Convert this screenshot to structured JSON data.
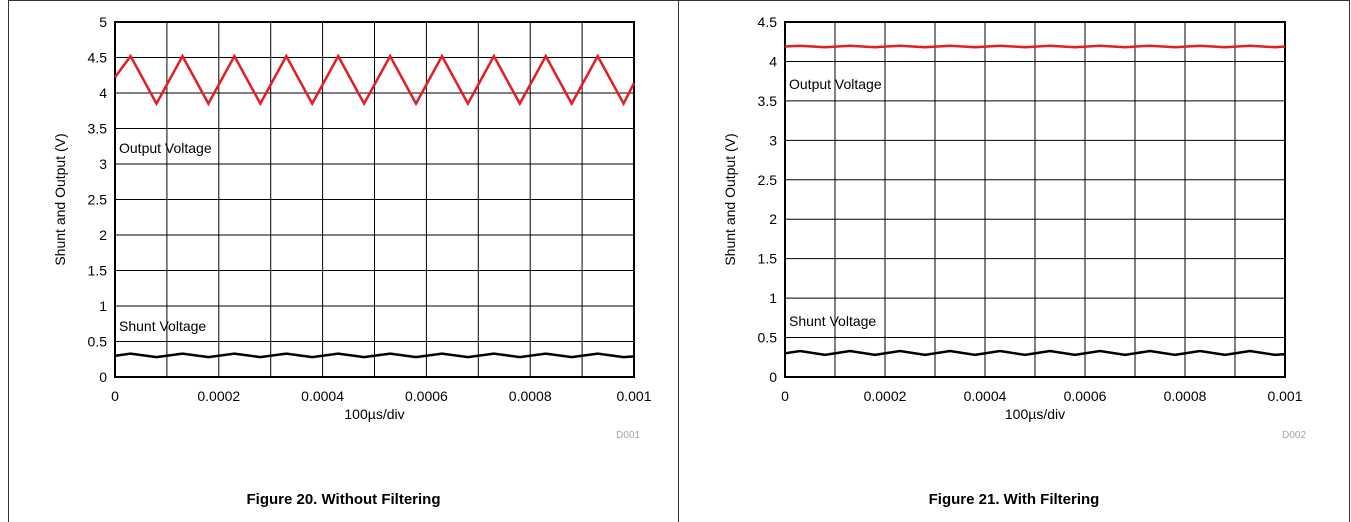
{
  "colors": {
    "output": "#e31e24",
    "shunt": "#000000",
    "grid": "#000000",
    "code": "#a6a6a6"
  },
  "figures": [
    {
      "caption": "Figure 20. Without Filtering",
      "code": "D001"
    },
    {
      "caption": "Figure 21. With Filtering",
      "code": "D002"
    }
  ],
  "chart_data": [
    {
      "type": "line",
      "title": "",
      "xlabel": "100µs/div",
      "ylabel": "Shunt and Output (V)",
      "xlim": [
        0,
        0.001
      ],
      "ylim": [
        0,
        5
      ],
      "xticks": [
        "0",
        "0.0002",
        "0.0004",
        "0.0006",
        "0.0008",
        "0.001"
      ],
      "yticks": [
        "0",
        "0.5",
        "1",
        "1.5",
        "2",
        "2.5",
        "3",
        "3.5",
        "4",
        "4.5",
        "5"
      ],
      "grid": true,
      "annotations": [
        "Output Voltage",
        "Shunt Voltage"
      ],
      "series": [
        {
          "x": [
            0,
            3e-05,
            8e-05,
            0.00013,
            0.00018,
            0.00023,
            0.00028,
            0.00033,
            0.00038,
            0.00043,
            0.00048,
            0.00053,
            0.00058,
            0.00063,
            0.00068,
            0.00073,
            0.00078,
            0.00083,
            0.00088,
            0.00093,
            0.00098,
            0.001
          ],
          "y": [
            4.22,
            4.52,
            3.85,
            4.52,
            3.85,
            4.52,
            3.85,
            4.52,
            3.85,
            4.52,
            3.85,
            4.52,
            3.85,
            4.52,
            3.85,
            4.52,
            3.85,
            4.52,
            3.85,
            4.52,
            3.85,
            4.14
          ]
        },
        {
          "x": [
            0,
            3e-05,
            8e-05,
            0.00013,
            0.00018,
            0.00023,
            0.00028,
            0.00033,
            0.00038,
            0.00043,
            0.00048,
            0.00053,
            0.00058,
            0.00063,
            0.00068,
            0.00073,
            0.00078,
            0.00083,
            0.00088,
            0.00093,
            0.00098,
            0.001
          ],
          "y": [
            0.3,
            0.33,
            0.28,
            0.33,
            0.28,
            0.33,
            0.28,
            0.33,
            0.28,
            0.33,
            0.28,
            0.33,
            0.28,
            0.33,
            0.28,
            0.33,
            0.28,
            0.33,
            0.28,
            0.33,
            0.28,
            0.29
          ]
        }
      ]
    },
    {
      "type": "line",
      "title": "",
      "xlabel": "100µs/div",
      "ylabel": "Shunt and Output (V)",
      "xlim": [
        0,
        0.001
      ],
      "ylim": [
        0,
        4.5
      ],
      "xticks": [
        "0",
        "0.0002",
        "0.0004",
        "0.0006",
        "0.0008",
        "0.001"
      ],
      "yticks": [
        "0",
        "0.5",
        "1",
        "1.5",
        "2",
        "2.5",
        "3",
        "3.5",
        "4",
        "4.5"
      ],
      "grid": true,
      "annotations": [
        "Output Voltage",
        "Shunt Voltage"
      ],
      "series": [
        {
          "x": [
            0,
            3e-05,
            8e-05,
            0.00013,
            0.00018,
            0.00023,
            0.00028,
            0.00033,
            0.00038,
            0.00043,
            0.00048,
            0.00053,
            0.00058,
            0.00063,
            0.00068,
            0.00073,
            0.00078,
            0.00083,
            0.00088,
            0.00093,
            0.00098,
            0.001
          ],
          "y": [
            4.19,
            4.2,
            4.18,
            4.2,
            4.18,
            4.2,
            4.18,
            4.2,
            4.18,
            4.2,
            4.18,
            4.2,
            4.18,
            4.2,
            4.18,
            4.2,
            4.18,
            4.2,
            4.18,
            4.2,
            4.18,
            4.19
          ]
        },
        {
          "x": [
            0,
            3e-05,
            8e-05,
            0.00013,
            0.00018,
            0.00023,
            0.00028,
            0.00033,
            0.00038,
            0.00043,
            0.00048,
            0.00053,
            0.00058,
            0.00063,
            0.00068,
            0.00073,
            0.00078,
            0.00083,
            0.00088,
            0.00093,
            0.00098,
            0.001
          ],
          "y": [
            0.3,
            0.33,
            0.28,
            0.33,
            0.28,
            0.33,
            0.28,
            0.33,
            0.28,
            0.33,
            0.28,
            0.33,
            0.28,
            0.33,
            0.28,
            0.33,
            0.28,
            0.33,
            0.28,
            0.33,
            0.28,
            0.29
          ]
        }
      ]
    }
  ]
}
